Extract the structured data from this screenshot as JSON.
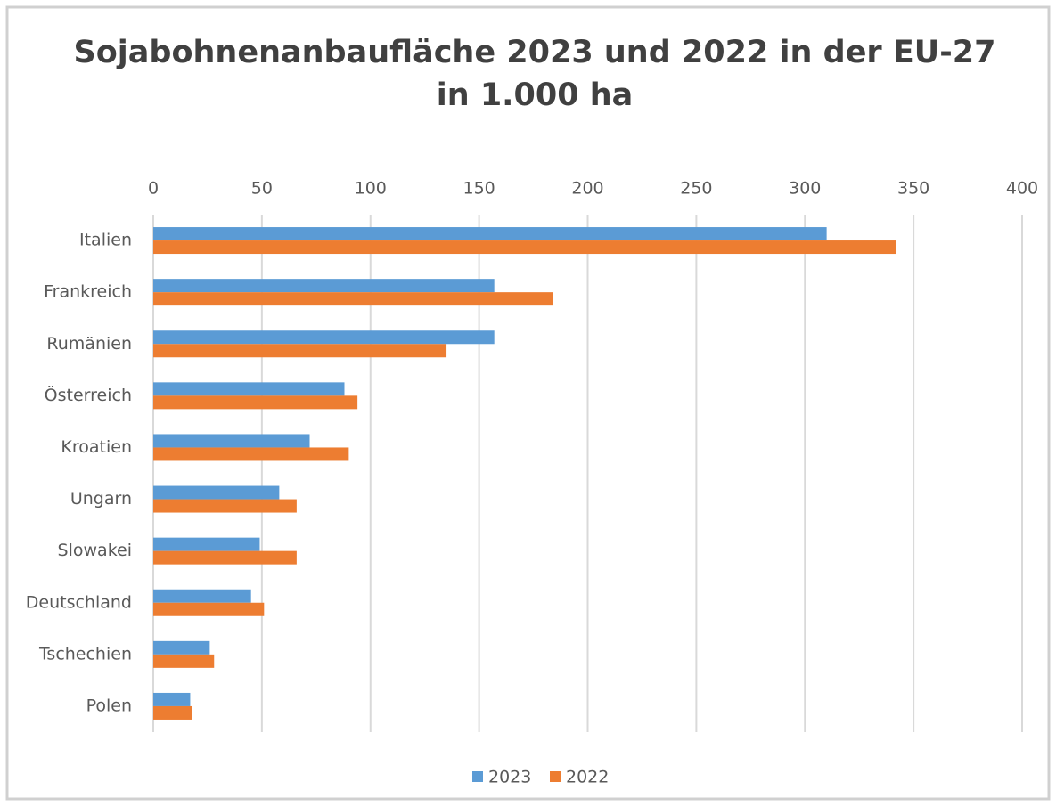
{
  "chart_data": {
    "type": "hbar",
    "title": "Sojabohnenanbaufläche 2023 und 2022 in der EU-27",
    "subtitle": "in 1.000 ha",
    "categories": [
      "Italien",
      "Frankreich",
      "Rumänien",
      "Österreich",
      "Kroatien",
      "Ungarn",
      "Slowakei",
      "Deutschland",
      "Tschechien",
      "Polen"
    ],
    "series": [
      {
        "name": "2023",
        "color": "#5b9bd5",
        "values": [
          310,
          157,
          157,
          88,
          72,
          58,
          49,
          45,
          26,
          17
        ]
      },
      {
        "name": "2022",
        "color": "#ed7d31",
        "values": [
          342,
          184,
          135,
          94,
          90,
          66,
          66,
          51,
          28,
          18
        ]
      }
    ],
    "xlim": [
      0,
      400
    ],
    "xticks": [
      0,
      50,
      100,
      150,
      200,
      250,
      300,
      350,
      400
    ],
    "grid": true,
    "legend": "bottom"
  }
}
